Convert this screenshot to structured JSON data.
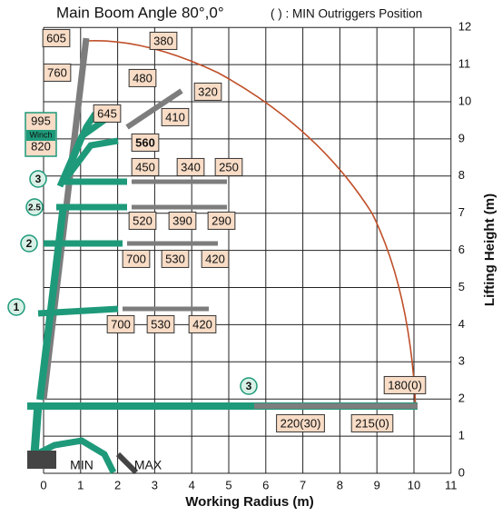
{
  "title": "Main Boom Angle 80°,0°",
  "note": "( ) : MIN Outriggers Position",
  "x_axis": {
    "label": "Working Radius (m)",
    "ticks": [
      0,
      1,
      2,
      3,
      4,
      5,
      6,
      7,
      8,
      9,
      10,
      11
    ]
  },
  "y_axis": {
    "label": "Lifting Height (m)",
    "ticks": [
      0,
      1,
      2,
      3,
      4,
      5,
      6,
      7,
      8,
      9,
      10,
      11,
      12
    ]
  },
  "loads": [
    "605",
    "380",
    "760",
    "480",
    "645",
    "320",
    "410",
    "560",
    "450",
    "340",
    "250",
    "520",
    "390",
    "290",
    "700",
    "530",
    "420",
    "700",
    "530",
    "420",
    "180(0)",
    "220(30)",
    "215(0)"
  ],
  "winch_box": {
    "top": "995",
    "middle": "Winch",
    "bottom": "820"
  },
  "boom_steps": [
    "3",
    "2.5",
    "2",
    "1",
    "3"
  ],
  "positions": [
    "MIN",
    "MAX"
  ]
}
